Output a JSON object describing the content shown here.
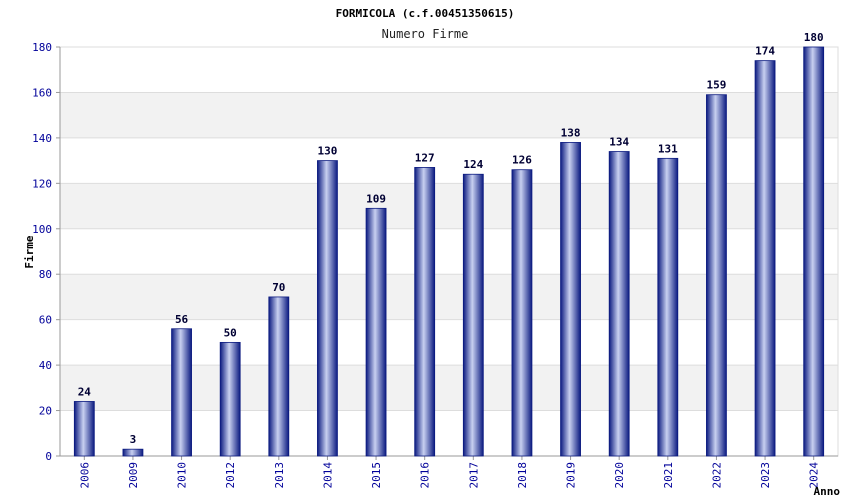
{
  "chart_data": {
    "type": "bar",
    "title": "FORMICOLA (c.f.00451350615)",
    "subtitle": "Numero Firme",
    "xlabel": "Anno",
    "ylabel": "Firme",
    "categories": [
      "2006",
      "2009",
      "2010",
      "2012",
      "2013",
      "2014",
      "2015",
      "2016",
      "2017",
      "2018",
      "2019",
      "2020",
      "2021",
      "2022",
      "2023",
      "2024"
    ],
    "values": [
      24,
      3,
      56,
      50,
      70,
      130,
      109,
      127,
      124,
      126,
      138,
      134,
      131,
      159,
      174,
      180
    ],
    "ylim": [
      0,
      180
    ],
    "yticks": [
      0,
      20,
      40,
      60,
      80,
      100,
      120,
      140,
      160,
      180
    ],
    "grid": true,
    "colors": {
      "bar_dark": "#0b1a80",
      "bar_light": "#c8d0f0",
      "band": "#f2f2f2",
      "grid": "#dddddd",
      "axis": "#999999"
    }
  }
}
